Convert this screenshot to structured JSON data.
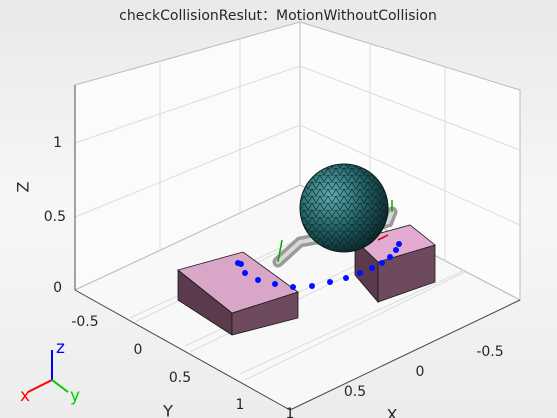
{
  "figure": {
    "title": "checkCollisionReslut：MotionWithoutCollision",
    "axes": {
      "z": {
        "label": "Z",
        "ticks": [
          "0",
          "0.5",
          "1"
        ]
      },
      "y": {
        "label": "Y",
        "ticks": [
          "-0.5",
          "0",
          "0.5",
          "1"
        ]
      },
      "x": {
        "label": "X",
        "ticks": [
          "-0.5",
          "0",
          "0.5",
          "1"
        ]
      }
    },
    "triad": {
      "x": "x",
      "y": "y",
      "z": "z"
    }
  }
}
